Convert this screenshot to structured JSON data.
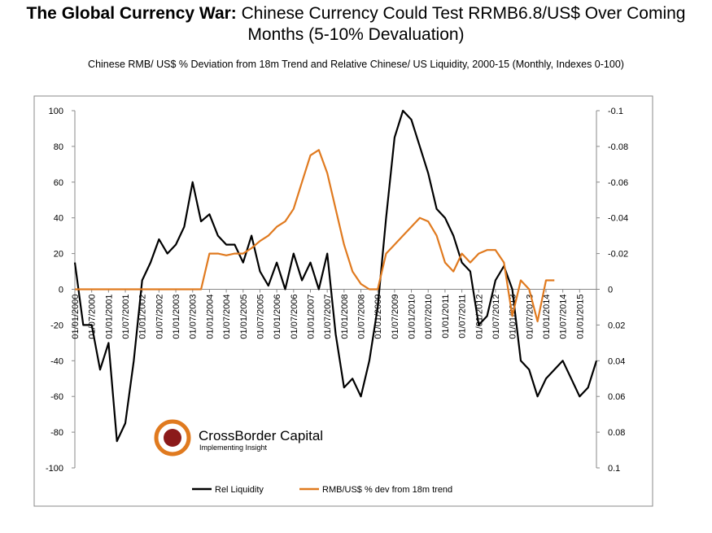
{
  "chart_data": {
    "type": "line",
    "title_bold": "The Global Currency War:",
    "title": "Chinese Currency Could Test RRMB6.8/US$ Over Coming Months (5-10% Devaluation)",
    "subtitle": "Chinese RMB/ US$ % Deviation from 18m Trend and Relative Chinese/ US Liquidity, 2000-15 (Monthly,  Indexes 0-100)",
    "logo": {
      "name": "CrossBorder Capital",
      "tagline": "Implementing Insight"
    },
    "categories": [
      "01/01/2000",
      null,
      "01/07/2000",
      null,
      "01/01/2001",
      null,
      "01/07/2001",
      null,
      "01/01/2002",
      null,
      "01/07/2002",
      null,
      "01/01/2003",
      null,
      "01/07/2003",
      null,
      "01/01/2004",
      null,
      "01/07/2004",
      null,
      "01/01/2005",
      null,
      "01/07/2005",
      null,
      "01/01/2006",
      null,
      "01/07/2006",
      null,
      "01/01/2007",
      null,
      "01/07/2007",
      null,
      "01/01/2008",
      null,
      "01/07/2008",
      null,
      "01/01/2009",
      null,
      "01/07/2009",
      null,
      "01/01/2010",
      null,
      "01/07/2010",
      null,
      "01/01/2011",
      null,
      "01/07/2011",
      null,
      "01/01/2012",
      null,
      "01/07/2012",
      null,
      "01/01/2013",
      null,
      "01/07/2013",
      null,
      "01/01/2014",
      null,
      "01/07/2014",
      null,
      "01/01/2015",
      null,
      null
    ],
    "series": [
      {
        "name": "Rel Liquidity",
        "color": "#000000",
        "axis": "y",
        "values": [
          15,
          -20,
          -20,
          -45,
          -30,
          -85,
          -75,
          -40,
          5,
          15,
          28,
          20,
          25,
          35,
          60,
          38,
          42,
          30,
          25,
          25,
          15,
          30,
          10,
          2,
          15,
          0,
          20,
          5,
          15,
          0,
          20,
          -25,
          -55,
          -50,
          -60,
          -40,
          -10,
          40,
          85,
          100,
          95,
          80,
          65,
          45,
          40,
          30,
          15,
          10,
          -20,
          -15,
          5,
          13,
          0,
          -40,
          -45,
          -60,
          -50,
          -45,
          -40,
          -50,
          -60,
          -55,
          -40
        ]
      },
      {
        "name": "RMB/US$ % dev from 18m trend",
        "color": "#e07a1f",
        "axis": "y2",
        "values": [
          0,
          0,
          0,
          0,
          0,
          0,
          0,
          0,
          0,
          0,
          0,
          0,
          0,
          0,
          0,
          0,
          -0.02,
          -0.02,
          -0.019,
          -0.02,
          -0.02,
          -0.023,
          -0.027,
          -0.03,
          -0.035,
          -0.038,
          -0.045,
          -0.06,
          -0.075,
          -0.078,
          -0.065,
          -0.045,
          -0.025,
          -0.01,
          -0.003,
          0,
          0,
          -0.02,
          -0.025,
          -0.03,
          -0.035,
          -0.04,
          -0.038,
          -0.03,
          -0.015,
          -0.01,
          -0.02,
          -0.015,
          -0.02,
          -0.022,
          -0.022,
          -0.015,
          0.015,
          -0.005,
          0,
          0.018,
          -0.005,
          -0.005,
          null,
          null,
          null,
          null,
          null
        ]
      }
    ],
    "ylim": [
      -100,
      100
    ],
    "yticks": [
      -100,
      -80,
      -60,
      -40,
      -20,
      0,
      20,
      40,
      60,
      80,
      100
    ],
    "y2lim": [
      0.1,
      -0.1
    ],
    "y2ticks": [
      0.1,
      0.08,
      0.06,
      0.04,
      0.02,
      0,
      -0.02,
      -0.04,
      -0.06,
      -0.08,
      -0.1
    ]
  }
}
